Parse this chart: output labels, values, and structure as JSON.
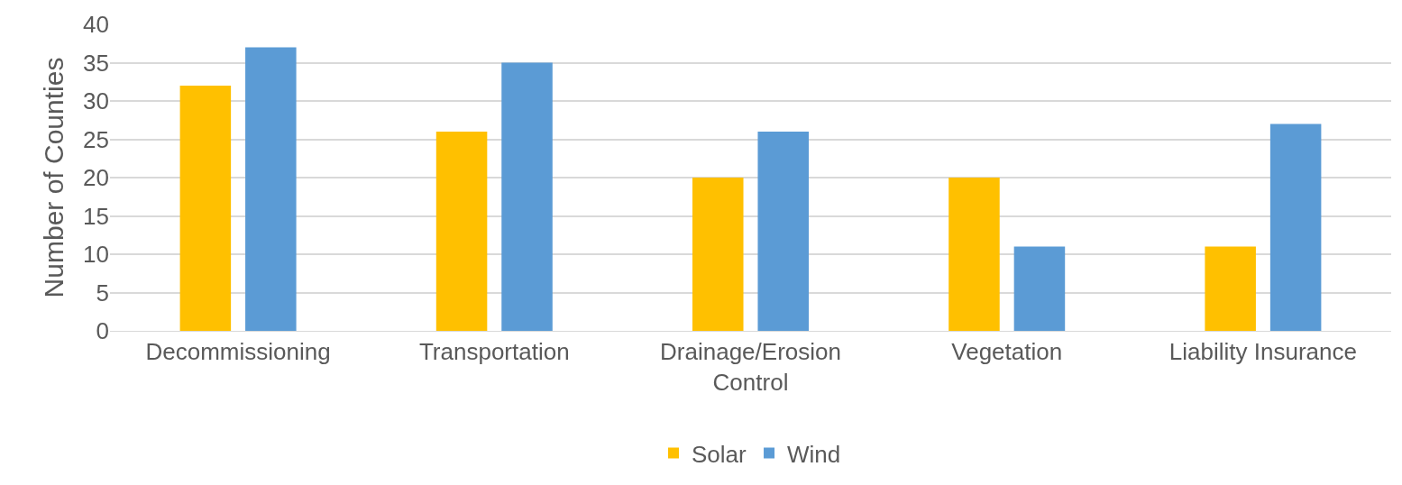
{
  "chart_data": {
    "type": "bar",
    "ylabel": "Number of Counties",
    "categories": [
      "Decommissioning",
      "Transportation",
      "Drainage/Erosion Control",
      "Vegetation",
      "Liability Insurance"
    ],
    "series": [
      {
        "name": "Solar",
        "color": "#ffc000",
        "values": [
          32,
          26,
          20,
          20,
          11
        ]
      },
      {
        "name": "Wind",
        "color": "#5b9bd5",
        "values": [
          37,
          35,
          26,
          11,
          27
        ]
      }
    ],
    "ylim": [
      0,
      40
    ],
    "yticks": [
      0,
      5,
      10,
      15,
      20,
      25,
      30,
      35,
      40
    ],
    "grid": "y",
    "legend": "bottom"
  }
}
